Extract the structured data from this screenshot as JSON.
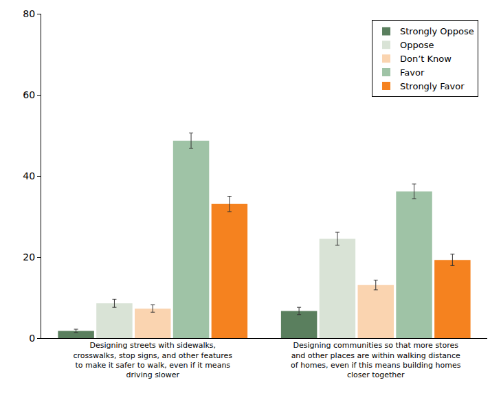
{
  "chart_data": {
    "type": "bar",
    "categories": [
      "Designing streets with sidewalks, crosswalks, stop signs, and other features to make it safer to walk, even if it means driving slower",
      "Designing communities so that more stores and other places are within walking distance of homes, even if this means building homes closer together"
    ],
    "series": [
      {
        "name": "Strongly Oppose",
        "color": "#5a7f5e",
        "values": [
          1.8,
          6.7
        ],
        "errors": [
          0.4,
          0.9
        ]
      },
      {
        "name": "Oppose",
        "color": "#d9e3d6",
        "values": [
          8.6,
          24.5
        ],
        "errors": [
          1.0,
          1.6
        ]
      },
      {
        "name": "Don’t Know",
        "color": "#fad4b0",
        "values": [
          7.3,
          13.1
        ],
        "errors": [
          0.9,
          1.2
        ]
      },
      {
        "name": "Favor",
        "color": "#9fc3a6",
        "values": [
          48.7,
          36.2
        ],
        "errors": [
          1.9,
          1.8
        ]
      },
      {
        "name": "Strongly Favor",
        "color": "#f5821f",
        "values": [
          33.1,
          19.3
        ],
        "errors": [
          1.9,
          1.4
        ]
      }
    ],
    "ylim": [
      0,
      80
    ],
    "yticks": [
      0,
      20,
      40,
      60,
      80
    ],
    "grid": false,
    "legend": "top right"
  }
}
